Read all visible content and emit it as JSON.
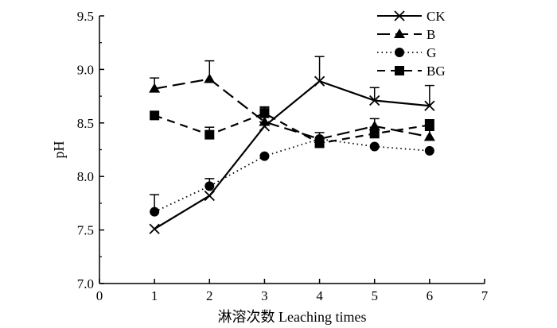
{
  "chart_data": {
    "type": "line",
    "xlabel": "淋溶次数 Leaching times",
    "ylabel": "pH",
    "xlim": [
      0,
      7
    ],
    "ylim": [
      7.0,
      9.5
    ],
    "x_ticks": [
      "0",
      "1",
      "2",
      "3",
      "4",
      "5",
      "6",
      "7"
    ],
    "y_ticks": [
      "7.0",
      "7.5",
      "8.0",
      "8.5",
      "9.0",
      "9.5"
    ],
    "grid": false,
    "legend_position": "top-right",
    "series": [
      {
        "name": "CK",
        "marker": "x",
        "line_style": "solid",
        "x": [
          1,
          2,
          3,
          4,
          5,
          6
        ],
        "values": [
          7.51,
          7.82,
          8.47,
          8.89,
          8.71,
          8.66
        ],
        "error": [
          0,
          0,
          0,
          0.23,
          0.12,
          0.19
        ]
      },
      {
        "name": "B",
        "marker": "triangle",
        "line_style": "long-dash",
        "x": [
          1,
          2,
          3,
          4,
          5,
          6
        ],
        "values": [
          8.82,
          8.91,
          8.51,
          8.35,
          8.47,
          8.37
        ],
        "error": [
          0.1,
          0.17,
          0.13,
          0.06,
          0.07,
          0.06
        ]
      },
      {
        "name": "G",
        "marker": "circle",
        "line_style": "dotted",
        "x": [
          1,
          2,
          3,
          4,
          5,
          6
        ],
        "values": [
          7.67,
          7.91,
          8.19,
          8.35,
          8.28,
          8.24
        ],
        "error": [
          0.16,
          0.07,
          0,
          0,
          0,
          0
        ]
      },
      {
        "name": "BG",
        "marker": "square",
        "line_style": "dash",
        "x": [
          1,
          2,
          3,
          4,
          5,
          6
        ],
        "values": [
          8.57,
          8.39,
          8.59,
          8.31,
          8.4,
          8.48
        ],
        "error": [
          0,
          0.07,
          0.06,
          0.04,
          0.06,
          0.05
        ]
      }
    ]
  }
}
